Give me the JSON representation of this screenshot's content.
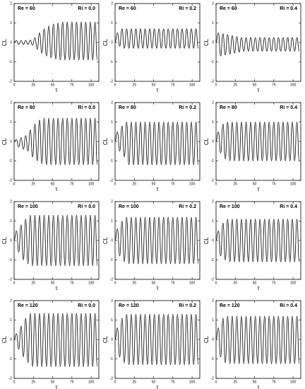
{
  "chart_data": [
    {
      "type": "line",
      "annotations": [
        "Re = 60",
        "Ri = 0.0"
      ],
      "xlabel": "τ",
      "ylabel": "CL",
      "xlim": [
        0,
        110
      ],
      "xticks": [
        0,
        25,
        50,
        75,
        100
      ],
      "ylim": [
        -2,
        2
      ],
      "yticks": [
        -2,
        -1,
        0,
        1,
        2
      ],
      "x": [
        0,
        3,
        6,
        9,
        12,
        15,
        18,
        21,
        24,
        27,
        30,
        33,
        36,
        39,
        42,
        45,
        48,
        51,
        54,
        57,
        60,
        63,
        66,
        69,
        72,
        75,
        78,
        81,
        84,
        87,
        90,
        93,
        96,
        99,
        102,
        105,
        108
      ],
      "series": [
        {
          "color": "#000000",
          "values": [
            0,
            0.1,
            -0.1,
            0.1,
            -0.1,
            0.1,
            -0.1,
            0.12,
            -0.15,
            0.25,
            -0.35,
            0.5,
            -0.55,
            0.7,
            -0.7,
            0.85,
            -0.8,
            0.95,
            -0.85,
            1.0,
            -0.9,
            1.05,
            -0.9,
            1.05,
            -0.9,
            1.05,
            -0.9,
            1.05,
            -0.9,
            1.05,
            -0.9,
            1.05,
            -0.9,
            1.05,
            -0.9,
            1.05,
            -0.9
          ]
        }
      ]
    },
    {
      "type": "line",
      "annotations": [
        "Re = 60",
        "Ri = 0.2"
      ],
      "xlabel": "τ",
      "ylabel": "CL",
      "xlim": [
        0,
        110
      ],
      "xticks": [
        0,
        25,
        50,
        75,
        100
      ],
      "ylim": [
        -2,
        2
      ],
      "yticks": [
        -2,
        -1,
        0,
        1,
        2
      ],
      "x": [
        0,
        3,
        6,
        9,
        12,
        15,
        18,
        21,
        24,
        27,
        30,
        33,
        36,
        39,
        42,
        45,
        48,
        51,
        54,
        57,
        60,
        63,
        66,
        69,
        72,
        75,
        78,
        81,
        84,
        87,
        90,
        93,
        96,
        99,
        102,
        105,
        108
      ],
      "series": [
        {
          "color": "#000000",
          "values": [
            0,
            0.5,
            -0.2,
            0.7,
            -0.3,
            0.7,
            -0.3,
            0.7,
            -0.3,
            0.7,
            -0.3,
            0.7,
            -0.3,
            0.7,
            -0.3,
            0.7,
            -0.3,
            0.7,
            -0.3,
            0.7,
            -0.3,
            0.7,
            -0.3,
            0.7,
            -0.3,
            0.7,
            -0.3,
            0.7,
            -0.3,
            0.7,
            -0.3,
            0.7,
            -0.3,
            0.7,
            -0.3,
            0.7,
            -0.3
          ]
        }
      ]
    },
    {
      "type": "line",
      "annotations": [
        "Re = 60",
        "Ri = 0.4"
      ],
      "xlabel": "τ",
      "ylabel": "CL",
      "xlim": [
        0,
        110
      ],
      "xticks": [
        0,
        25,
        50,
        75,
        100
      ],
      "ylim": [
        -2,
        2
      ],
      "yticks": [
        -2,
        -1,
        0,
        1,
        2
      ],
      "x": [
        0,
        3,
        6,
        9,
        12,
        15,
        18,
        21,
        24,
        27,
        30,
        33,
        36,
        39,
        42,
        45,
        48,
        51,
        54,
        57,
        60,
        63,
        66,
        69,
        72,
        75,
        78,
        81,
        84,
        87,
        90,
        93,
        96,
        99,
        102,
        105,
        108
      ],
      "series": [
        {
          "color": "#000000",
          "values": [
            0,
            0.5,
            -0.7,
            0.45,
            -0.65,
            0.4,
            -0.6,
            0.35,
            -0.55,
            0.3,
            -0.5,
            0.25,
            -0.45,
            0.25,
            -0.45,
            0.25,
            -0.45,
            0.25,
            -0.45,
            0.25,
            -0.45,
            0.25,
            -0.45,
            0.25,
            -0.45,
            0.25,
            -0.45,
            0.25,
            -0.45,
            0.25,
            -0.45,
            0.25,
            -0.45,
            0.25,
            -0.45,
            0.25,
            -0.45
          ]
        }
      ]
    },
    {
      "type": "line",
      "annotations": [
        "Re = 80",
        "Ri = 0.0"
      ],
      "xlabel": "τ",
      "ylabel": "CL",
      "xlim": [
        0,
        110
      ],
      "xticks": [
        0,
        25,
        50,
        75,
        100
      ],
      "ylim": [
        -2,
        2
      ],
      "yticks": [
        -2,
        -1,
        0,
        1,
        2
      ],
      "x": [
        0,
        3,
        6,
        9,
        12,
        15,
        18,
        21,
        24,
        27,
        30,
        33,
        36,
        39,
        42,
        45,
        48,
        51,
        54,
        57,
        60,
        63,
        66,
        69,
        72,
        75,
        78,
        81,
        84,
        87,
        90,
        93,
        96,
        99,
        102,
        105,
        108
      ],
      "series": [
        {
          "color": "#000000",
          "values": [
            0,
            0.1,
            -0.3,
            0.2,
            -0.4,
            0.3,
            -0.5,
            0.6,
            -0.8,
            0.9,
            -1.0,
            1.1,
            -1.15,
            1.2,
            -1.2,
            1.2,
            -1.2,
            1.2,
            -1.2,
            1.2,
            -1.2,
            1.2,
            -1.2,
            1.2,
            -1.2,
            1.2,
            -1.2,
            1.2,
            -1.2,
            1.2,
            -1.2,
            1.2,
            -1.2,
            1.2,
            -1.2,
            1.2,
            -1.2
          ]
        }
      ]
    },
    {
      "type": "line",
      "annotations": [
        "Re = 80",
        "Ri = 0.2"
      ],
      "xlabel": "τ",
      "ylabel": "CL",
      "xlim": [
        0,
        110
      ],
      "xticks": [
        0,
        25,
        50,
        75,
        100
      ],
      "ylim": [
        -2,
        2
      ],
      "yticks": [
        -2,
        -1,
        0,
        1,
        2
      ],
      "x": [
        0,
        3,
        6,
        9,
        12,
        15,
        18,
        21,
        24,
        27,
        30,
        33,
        36,
        39,
        42,
        45,
        48,
        51,
        54,
        57,
        60,
        63,
        66,
        69,
        72,
        75,
        78,
        81,
        84,
        87,
        90,
        93,
        96,
        99,
        102,
        105,
        108
      ],
      "series": [
        {
          "color": "#000000",
          "values": [
            0,
            0.5,
            -0.5,
            0.8,
            -0.8,
            1.0,
            -1.2,
            1.0,
            -1.2,
            1.0,
            -1.2,
            1.0,
            -1.2,
            1.0,
            -1.2,
            1.0,
            -1.2,
            1.0,
            -1.2,
            1.0,
            -1.2,
            1.0,
            -1.2,
            1.0,
            -1.2,
            1.0,
            -1.2,
            1.0,
            -1.2,
            1.0,
            -1.2,
            1.0,
            -1.2,
            1.0,
            -1.2,
            1.0,
            -1.2
          ]
        }
      ]
    },
    {
      "type": "line",
      "annotations": [
        "Re = 80",
        "Ri = 0.4"
      ],
      "xlabel": "τ",
      "ylabel": "CL",
      "xlim": [
        0,
        110
      ],
      "xticks": [
        0,
        25,
        50,
        75,
        100
      ],
      "ylim": [
        -2,
        2
      ],
      "yticks": [
        -2,
        -1,
        0,
        1,
        2
      ],
      "x": [
        0,
        3,
        6,
        9,
        12,
        15,
        18,
        21,
        24,
        27,
        30,
        33,
        36,
        39,
        42,
        45,
        48,
        51,
        54,
        57,
        60,
        63,
        66,
        69,
        72,
        75,
        78,
        81,
        84,
        87,
        90,
        93,
        96,
        99,
        102,
        105,
        108
      ],
      "series": [
        {
          "color": "#000000",
          "values": [
            0,
            0.5,
            -0.6,
            0.9,
            -0.9,
            1.0,
            -1.0,
            1.0,
            -1.0,
            1.0,
            -1.0,
            1.0,
            -1.0,
            1.0,
            -1.0,
            1.0,
            -1.0,
            1.0,
            -1.0,
            1.0,
            -1.0,
            1.0,
            -1.0,
            1.0,
            -1.0,
            1.0,
            -1.0,
            1.0,
            -1.0,
            1.0,
            -1.0,
            1.0,
            -1.0,
            1.0,
            -1.0,
            1.0,
            -1.0
          ]
        }
      ]
    },
    {
      "type": "line",
      "annotations": [
        "Re = 100",
        "Ri = 0.0"
      ],
      "xlabel": "τ",
      "ylabel": "CL",
      "xlim": [
        0,
        110
      ],
      "xticks": [
        0,
        25,
        50,
        75,
        100
      ],
      "ylim": [
        -2,
        2
      ],
      "yticks": [
        -2,
        -1,
        0,
        1,
        2
      ],
      "x": [
        0,
        3,
        6,
        9,
        12,
        15,
        18,
        21,
        24,
        27,
        30,
        33,
        36,
        39,
        42,
        45,
        48,
        51,
        54,
        57,
        60,
        63,
        66,
        69,
        72,
        75,
        78,
        81,
        84,
        87,
        90,
        93,
        96,
        99,
        102,
        105,
        108
      ],
      "series": [
        {
          "color": "#000000",
          "values": [
            0,
            0.5,
            -0.6,
            0.8,
            -1.0,
            1.1,
            -1.2,
            1.3,
            -1.3,
            1.3,
            -1.3,
            1.3,
            -1.3,
            1.3,
            -1.3,
            1.3,
            -1.3,
            1.3,
            -1.3,
            1.3,
            -1.3,
            1.3,
            -1.3,
            1.3,
            -1.3,
            1.3,
            -1.3,
            1.3,
            -1.3,
            1.3,
            -1.3,
            1.3,
            -1.3,
            1.3,
            -1.3,
            1.3,
            -1.3
          ]
        }
      ]
    },
    {
      "type": "line",
      "annotations": [
        "Re = 100",
        "Ri = 0.2"
      ],
      "xlabel": "τ",
      "ylabel": "CL",
      "xlim": [
        0,
        110
      ],
      "xticks": [
        0,
        25,
        50,
        75,
        100
      ],
      "ylim": [
        -2,
        2
      ],
      "yticks": [
        -2,
        -1,
        0,
        1,
        2
      ],
      "x": [
        0,
        3,
        6,
        9,
        12,
        15,
        18,
        21,
        24,
        27,
        30,
        33,
        36,
        39,
        42,
        45,
        48,
        51,
        54,
        57,
        60,
        63,
        66,
        69,
        72,
        75,
        78,
        81,
        84,
        87,
        90,
        93,
        96,
        99,
        102,
        105,
        108
      ],
      "series": [
        {
          "color": "#000000",
          "values": [
            0,
            0.6,
            -0.8,
            1.0,
            -1.1,
            1.2,
            -1.2,
            1.2,
            -1.2,
            1.2,
            -1.2,
            1.2,
            -1.2,
            1.2,
            -1.2,
            1.2,
            -1.2,
            1.2,
            -1.2,
            1.2,
            -1.2,
            1.2,
            -1.2,
            1.2,
            -1.2,
            1.2,
            -1.2,
            1.2,
            -1.2,
            1.2,
            -1.2,
            1.2,
            -1.2,
            1.2,
            -1.2,
            1.2,
            -1.2
          ]
        }
      ]
    },
    {
      "type": "line",
      "annotations": [
        "Re = 100",
        "Ri = 0.4"
      ],
      "xlabel": "τ",
      "ylabel": "CL",
      "xlim": [
        0,
        110
      ],
      "xticks": [
        0,
        25,
        50,
        75,
        100
      ],
      "ylim": [
        -2,
        2
      ],
      "yticks": [
        -2,
        -1,
        0,
        1,
        2
      ],
      "x": [
        0,
        3,
        6,
        9,
        12,
        15,
        18,
        21,
        24,
        27,
        30,
        33,
        36,
        39,
        42,
        45,
        48,
        51,
        54,
        57,
        60,
        63,
        66,
        69,
        72,
        75,
        78,
        81,
        84,
        87,
        90,
        93,
        96,
        99,
        102,
        105,
        108
      ],
      "series": [
        {
          "color": "#000000",
          "values": [
            0,
            0.5,
            -0.8,
            0.9,
            -1.0,
            1.1,
            -1.1,
            1.1,
            -1.1,
            1.1,
            -1.1,
            1.1,
            -1.1,
            1.1,
            -1.1,
            1.1,
            -1.1,
            1.1,
            -1.1,
            1.1,
            -1.1,
            1.1,
            -1.1,
            1.1,
            -1.1,
            1.1,
            -1.1,
            1.1,
            -1.1,
            1.1,
            -1.1,
            1.1,
            -1.1,
            1.1,
            -1.1,
            1.1,
            -1.1
          ]
        }
      ]
    },
    {
      "type": "line",
      "annotations": [
        "Re = 120",
        "Ri = 0.0"
      ],
      "xlabel": "τ",
      "ylabel": "CL",
      "xlim": [
        0,
        110
      ],
      "xticks": [
        0,
        25,
        50,
        75,
        100
      ],
      "ylim": [
        -2,
        2
      ],
      "yticks": [
        -2,
        -1,
        0,
        1,
        2
      ],
      "x": [
        0,
        3,
        6,
        9,
        12,
        15,
        18,
        21,
        24,
        27,
        30,
        33,
        36,
        39,
        42,
        45,
        48,
        51,
        54,
        57,
        60,
        63,
        66,
        69,
        72,
        75,
        78,
        81,
        84,
        87,
        90,
        93,
        96,
        99,
        102,
        105,
        108
      ],
      "series": [
        {
          "color": "#000000",
          "values": [
            0,
            0.3,
            -0.5,
            0.7,
            -0.9,
            1.1,
            -1.2,
            1.35,
            -1.4,
            1.35,
            -1.4,
            1.35,
            -1.4,
            1.35,
            -1.4,
            1.35,
            -1.4,
            1.35,
            -1.4,
            1.35,
            -1.4,
            1.35,
            -1.4,
            1.35,
            -1.4,
            1.35,
            -1.4,
            1.35,
            -1.4,
            1.35,
            -1.4,
            1.35,
            -1.4,
            1.35,
            -1.4,
            1.35,
            -1.4
          ]
        }
      ]
    },
    {
      "type": "line",
      "annotations": [
        "Re = 120",
        "Ri = 0.2"
      ],
      "xlabel": "τ",
      "ylabel": "CL",
      "xlim": [
        0,
        110
      ],
      "xticks": [
        0,
        25,
        50,
        75,
        100
      ],
      "ylim": [
        -2,
        2
      ],
      "yticks": [
        -2,
        -1,
        0,
        1,
        2
      ],
      "x": [
        0,
        3,
        6,
        9,
        12,
        15,
        18,
        21,
        24,
        27,
        30,
        33,
        36,
        39,
        42,
        45,
        48,
        51,
        54,
        57,
        60,
        63,
        66,
        69,
        72,
        75,
        78,
        81,
        84,
        87,
        90,
        93,
        96,
        99,
        102,
        105,
        108
      ],
      "series": [
        {
          "color": "#000000",
          "values": [
            0,
            0.6,
            -0.9,
            1.1,
            -1.2,
            1.3,
            -1.3,
            1.3,
            -1.3,
            1.3,
            -1.3,
            1.3,
            -1.3,
            1.3,
            -1.3,
            1.3,
            -1.3,
            1.3,
            -1.3,
            1.3,
            -1.3,
            1.3,
            -1.3,
            1.3,
            -1.3,
            1.3,
            -1.3,
            1.3,
            -1.3,
            1.3,
            -1.3,
            1.3,
            -1.3,
            1.3,
            -1.3,
            1.3,
            -1.3
          ]
        }
      ]
    },
    {
      "type": "line",
      "annotations": [
        "Re = 120",
        "Ri = 0.4"
      ],
      "xlabel": "τ",
      "ylabel": "CL",
      "xlim": [
        0,
        110
      ],
      "xticks": [
        0,
        25,
        50,
        75,
        100
      ],
      "ylim": [
        -2,
        2
      ],
      "yticks": [
        -2,
        -1,
        0,
        1,
        2
      ],
      "x": [
        0,
        3,
        6,
        9,
        12,
        15,
        18,
        21,
        24,
        27,
        30,
        33,
        36,
        39,
        42,
        45,
        48,
        51,
        54,
        57,
        60,
        63,
        66,
        69,
        72,
        75,
        78,
        81,
        84,
        87,
        90,
        93,
        96,
        99,
        102,
        105,
        108
      ],
      "series": [
        {
          "color": "#000000",
          "values": [
            0,
            0.6,
            -0.9,
            1.1,
            -1.2,
            1.2,
            -1.25,
            1.2,
            -1.25,
            1.2,
            -1.25,
            1.2,
            -1.25,
            1.2,
            -1.25,
            1.2,
            -1.25,
            1.2,
            -1.25,
            1.2,
            -1.25,
            1.2,
            -1.25,
            1.2,
            -1.25,
            1.2,
            -1.25,
            1.2,
            -1.25,
            1.2,
            -1.25,
            1.2,
            -1.25,
            1.2,
            -1.25,
            1.2,
            -1.25
          ]
        }
      ]
    }
  ]
}
